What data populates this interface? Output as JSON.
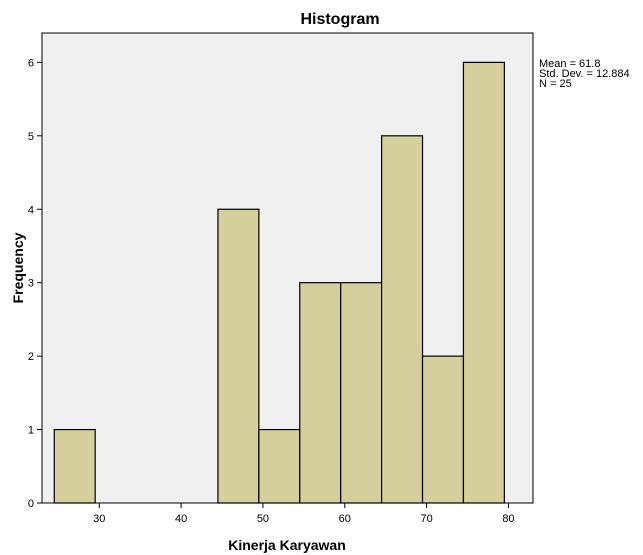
{
  "chart_data": {
    "type": "bar",
    "subtype": "histogram",
    "title": "Histogram",
    "xlabel": "Kinerja Karyawan",
    "ylabel": "Frequency",
    "xlim": [
      23,
      83
    ],
    "ylim": [
      0,
      6.4
    ],
    "x_ticks": [
      30,
      40,
      50,
      60,
      70,
      80
    ],
    "y_ticks": [
      0,
      1,
      2,
      3,
      4,
      5,
      6
    ],
    "bins": [
      {
        "start": 24.5,
        "end": 29.5,
        "count": 1
      },
      {
        "start": 29.5,
        "end": 34.5,
        "count": 0
      },
      {
        "start": 34.5,
        "end": 39.5,
        "count": 0
      },
      {
        "start": 39.5,
        "end": 44.5,
        "count": 0
      },
      {
        "start": 44.5,
        "end": 49.5,
        "count": 4
      },
      {
        "start": 49.5,
        "end": 54.5,
        "count": 1
      },
      {
        "start": 54.5,
        "end": 59.5,
        "count": 3
      },
      {
        "start": 59.5,
        "end": 64.5,
        "count": 3
      },
      {
        "start": 64.5,
        "end": 69.5,
        "count": 5
      },
      {
        "start": 69.5,
        "end": 74.5,
        "count": 2
      },
      {
        "start": 74.5,
        "end": 79.5,
        "count": 6
      }
    ],
    "stats": [
      "Mean = 61.8",
      "Std. Dev. = 12.884",
      "N = 25"
    ],
    "grid": false,
    "colors": {
      "bar_fill": "#d4cf9c",
      "bar_stroke": "#000000",
      "plot_background": "#f0f0f0",
      "page_background": "#ffffff"
    }
  }
}
